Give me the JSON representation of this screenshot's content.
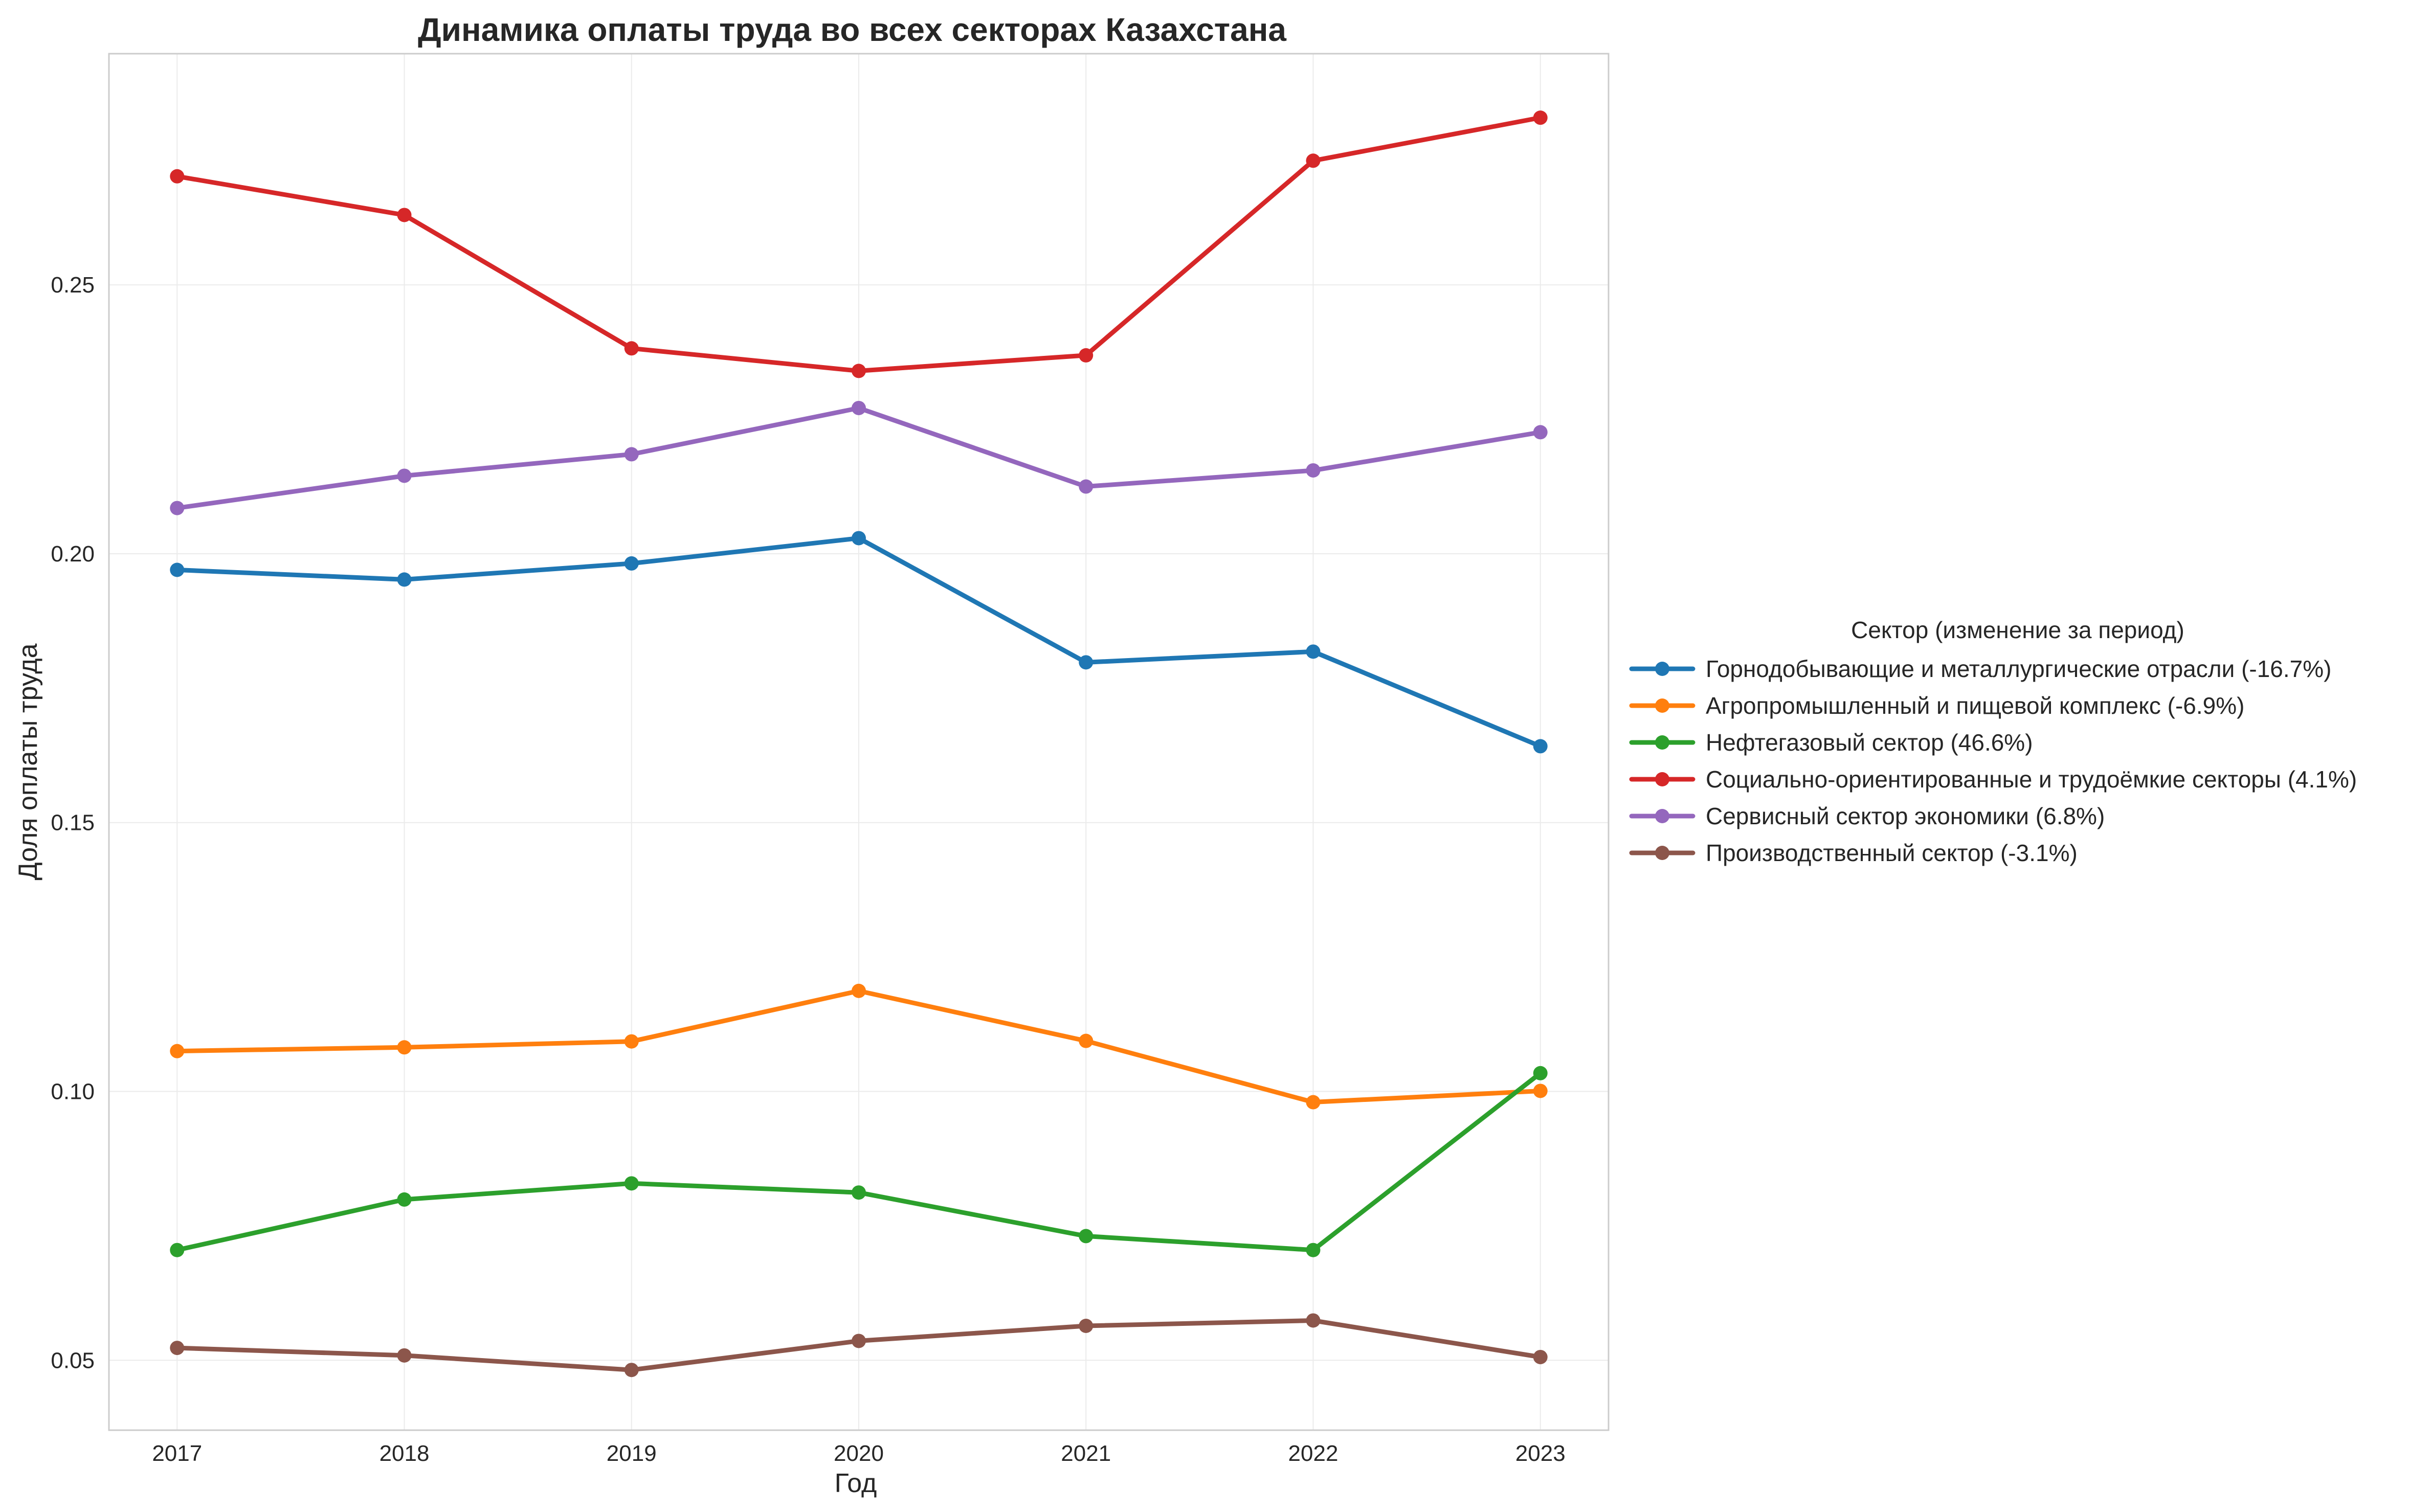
{
  "chart_data": {
    "type": "line",
    "title": "Динамика оплаты труда во всех секторах Казахстана",
    "xlabel": "Год",
    "ylabel": "Доля оплаты труда",
    "x": [
      2017,
      2018,
      2019,
      2020,
      2021,
      2022,
      2023
    ],
    "x_tick_labels": [
      "2017",
      "2018",
      "2019",
      "2020",
      "2021",
      "2022",
      "2023"
    ],
    "y_ticks": [
      0.05,
      0.1,
      0.15,
      0.2,
      0.25
    ],
    "y_tick_labels": [
      "0.05",
      "0.10",
      "0.15",
      "0.20",
      "0.25"
    ],
    "xlim": [
      2016.7,
      2023.3
    ],
    "ylim": [
      0.037,
      0.293
    ],
    "grid": true,
    "legend_placement": "outside-right",
    "legend_title": "Сектор (изменение за период)",
    "series": [
      {
        "name": "Горнодобывающие и металлургические отрасли (-16.7%)",
        "color": "#1f77b4",
        "values": [
          0.197,
          0.1952,
          0.1982,
          0.2029,
          0.1798,
          0.1818,
          0.1642
        ]
      },
      {
        "name": "Агропромышленный и пищевой комплекс (-6.9%)",
        "color": "#ff7f0e",
        "values": [
          0.1075,
          0.1082,
          0.1093,
          0.1187,
          0.1094,
          0.098,
          0.1001
        ]
      },
      {
        "name": "Нефтегазовый сектор (46.6%)",
        "color": "#2ca02c",
        "values": [
          0.0705,
          0.0799,
          0.0829,
          0.0812,
          0.0731,
          0.0705,
          0.1034
        ]
      },
      {
        "name": "Социально-ориентированные и трудоёмкие секторы (4.1%)",
        "color": "#d62728",
        "values": [
          0.2702,
          0.263,
          0.2382,
          0.234,
          0.2369,
          0.2731,
          0.2811
        ]
      },
      {
        "name": "Сервисный сектор экономики (6.8%)",
        "color": "#9467bd",
        "values": [
          0.2085,
          0.2145,
          0.2185,
          0.2271,
          0.2125,
          0.2155,
          0.2226
        ]
      },
      {
        "name": "Производственный сектор (-3.1%)",
        "color": "#8c564b",
        "values": [
          0.0523,
          0.0509,
          0.0482,
          0.0536,
          0.0564,
          0.0574,
          0.0506
        ]
      }
    ]
  }
}
